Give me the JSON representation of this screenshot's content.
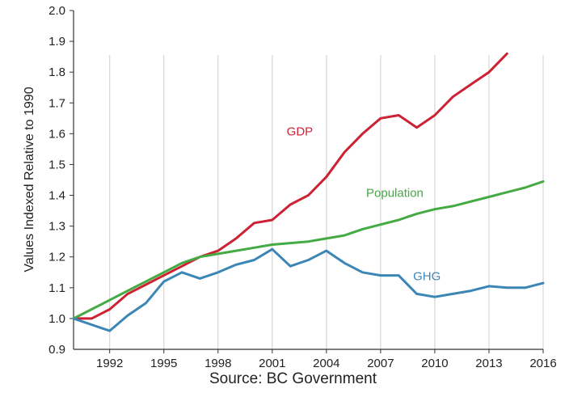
{
  "chart_data": {
    "type": "line",
    "ylabel": "Values Indexed Relative to 1990",
    "xlabel": "",
    "xlim": [
      1990,
      2016
    ],
    "ylim": [
      0.9,
      2.0
    ],
    "x_ticks": [
      1992,
      1995,
      1998,
      2001,
      2004,
      2007,
      2010,
      2013,
      2016
    ],
    "y_ticks": [
      1.0,
      1.1,
      1.2,
      1.3,
      1.4,
      1.5,
      1.6,
      1.7,
      1.8,
      1.9,
      2.0
    ],
    "y_tick_labels": [
      "1.0",
      "1.1",
      "1.2",
      "1.3",
      "1.4",
      "1.5",
      "1.6",
      "1.7",
      "1.8",
      "1.9",
      "2.0"
    ],
    "grid": "vertical",
    "series": [
      {
        "name": "GDP",
        "color": "#cc2233",
        "x": [
          1990,
          1991,
          1992,
          1993,
          1994,
          1995,
          1996,
          1997,
          1998,
          1999,
          2000,
          2001,
          2002,
          2003,
          2004,
          2005,
          2006,
          2007,
          2008,
          2009,
          2010,
          2011,
          2012,
          2013,
          2014
        ],
        "y": [
          1.0,
          1.0,
          1.03,
          1.08,
          1.11,
          1.14,
          1.17,
          1.2,
          1.22,
          1.26,
          1.31,
          1.32,
          1.37,
          1.4,
          1.46,
          1.54,
          1.6,
          1.65,
          1.66,
          1.62,
          1.66,
          1.72,
          1.76,
          1.8,
          1.86
        ]
      },
      {
        "name": "Population",
        "color": "#44aa44",
        "x": [
          1990,
          1991,
          1992,
          1993,
          1994,
          1995,
          1996,
          1997,
          1998,
          1999,
          2000,
          2001,
          2002,
          2003,
          2004,
          2005,
          2006,
          2007,
          2008,
          2009,
          2010,
          2011,
          2012,
          2013,
          2014,
          2015,
          2016
        ],
        "y": [
          1.0,
          1.03,
          1.06,
          1.09,
          1.12,
          1.15,
          1.18,
          1.2,
          1.21,
          1.22,
          1.23,
          1.24,
          1.245,
          1.25,
          1.26,
          1.27,
          1.29,
          1.305,
          1.32,
          1.34,
          1.355,
          1.365,
          1.38,
          1.395,
          1.41,
          1.425,
          1.445
        ]
      },
      {
        "name": "GHG",
        "color": "#3b86b5",
        "x": [
          1990,
          1991,
          1992,
          1993,
          1994,
          1995,
          1996,
          1997,
          1998,
          1999,
          2000,
          2001,
          2002,
          2003,
          2004,
          2005,
          2006,
          2007,
          2008,
          2009,
          2010,
          2011,
          2012,
          2013,
          2014,
          2015,
          2016
        ],
        "y": [
          1.0,
          0.98,
          0.96,
          1.01,
          1.05,
          1.12,
          1.15,
          1.13,
          1.15,
          1.175,
          1.19,
          1.225,
          1.17,
          1.19,
          1.22,
          1.18,
          1.15,
          1.14,
          1.14,
          1.08,
          1.07,
          1.08,
          1.09,
          1.105,
          1.1,
          1.1,
          1.115
        ]
      }
    ],
    "annotations": [
      {
        "text": "GDP",
        "x": 2001.8,
        "y": 1.595,
        "color": "#cc2233"
      },
      {
        "text": "Population",
        "x": 2006.2,
        "y": 1.395,
        "color": "#44aa44"
      },
      {
        "text": "GHG",
        "x": 2008.8,
        "y": 1.125,
        "color": "#3b86b5"
      }
    ]
  },
  "footer": {
    "source": "Source: BC Government"
  }
}
